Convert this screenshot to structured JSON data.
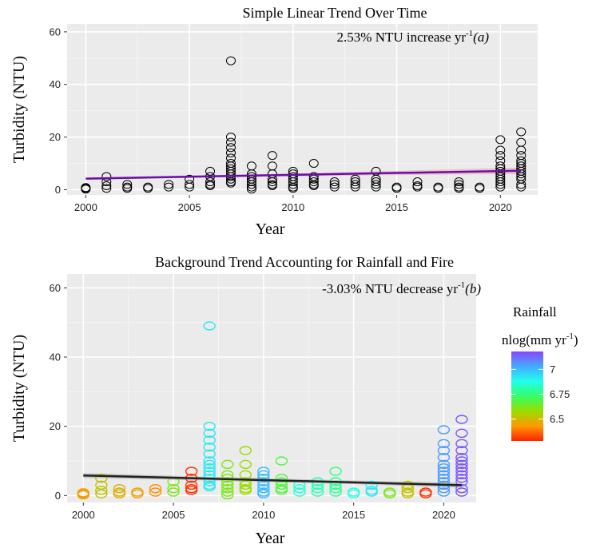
{
  "chart_data": [
    {
      "type": "scatter",
      "title": "Simple Linear Trend Over Time",
      "xlabel": "Year",
      "ylabel": "Turbidity (NTU)",
      "annotation": {
        "text": "2.53% NTU increase yr",
        "sup": "-1",
        "label": "(a)"
      },
      "xlim": [
        1999.1,
        2021.8
      ],
      "ylim": [
        -2,
        63
      ],
      "xticks": [
        2000,
        2005,
        2010,
        2015,
        2020
      ],
      "yticks": [
        0,
        20,
        40,
        60
      ],
      "grid": true,
      "point_color": "#000000",
      "trend": {
        "x": [
          2000,
          2021
        ],
        "y": [
          4.2,
          7.2
        ],
        "color": "#6a0dad",
        "band_color": "#e8a0a0"
      },
      "points": [
        [
          2000,
          0.5
        ],
        [
          2000,
          0.2
        ],
        [
          2000,
          0.8
        ],
        [
          2001,
          5
        ],
        [
          2001,
          3
        ],
        [
          2001,
          1.5
        ],
        [
          2001,
          0.5
        ],
        [
          2002,
          2
        ],
        [
          2002,
          1
        ],
        [
          2002,
          0.5
        ],
        [
          2003,
          1
        ],
        [
          2003,
          0.5
        ],
        [
          2004,
          2
        ],
        [
          2004,
          1
        ],
        [
          2005,
          4
        ],
        [
          2005,
          2
        ],
        [
          2005,
          1
        ],
        [
          2006,
          7
        ],
        [
          2006,
          5
        ],
        [
          2006,
          3
        ],
        [
          2006,
          2
        ],
        [
          2006,
          1.5
        ],
        [
          2007,
          49
        ],
        [
          2007,
          20
        ],
        [
          2007,
          18
        ],
        [
          2007,
          16
        ],
        [
          2007,
          14
        ],
        [
          2007,
          12
        ],
        [
          2007,
          10
        ],
        [
          2007,
          9
        ],
        [
          2007,
          8
        ],
        [
          2007,
          7
        ],
        [
          2007,
          6
        ],
        [
          2007,
          5
        ],
        [
          2007,
          4
        ],
        [
          2007,
          3
        ],
        [
          2007,
          2.5
        ],
        [
          2008,
          9
        ],
        [
          2008,
          6
        ],
        [
          2008,
          5
        ],
        [
          2008,
          4
        ],
        [
          2008,
          3
        ],
        [
          2008,
          2
        ],
        [
          2008,
          1
        ],
        [
          2008,
          0.2
        ],
        [
          2009,
          13
        ],
        [
          2009,
          9
        ],
        [
          2009,
          6
        ],
        [
          2009,
          4
        ],
        [
          2009,
          3
        ],
        [
          2009,
          2
        ],
        [
          2009,
          1.5
        ],
        [
          2010,
          7
        ],
        [
          2010,
          6
        ],
        [
          2010,
          5
        ],
        [
          2010,
          4
        ],
        [
          2010,
          3
        ],
        [
          2010,
          2
        ],
        [
          2010,
          1
        ],
        [
          2010,
          0.5
        ],
        [
          2011,
          10
        ],
        [
          2011,
          5
        ],
        [
          2011,
          4
        ],
        [
          2011,
          3
        ],
        [
          2011,
          2
        ],
        [
          2011,
          1.5
        ],
        [
          2012,
          3
        ],
        [
          2012,
          2
        ],
        [
          2012,
          1
        ],
        [
          2013,
          4
        ],
        [
          2013,
          3
        ],
        [
          2013,
          2
        ],
        [
          2013,
          1
        ],
        [
          2014,
          7
        ],
        [
          2014,
          4
        ],
        [
          2014,
          3
        ],
        [
          2014,
          2
        ],
        [
          2014,
          1
        ],
        [
          2015,
          1
        ],
        [
          2015,
          0.5
        ],
        [
          2016,
          3
        ],
        [
          2016,
          1.5
        ],
        [
          2016,
          1
        ],
        [
          2017,
          1
        ],
        [
          2017,
          0.5
        ],
        [
          2018,
          3
        ],
        [
          2018,
          2
        ],
        [
          2018,
          1
        ],
        [
          2018,
          0.5
        ],
        [
          2019,
          1
        ],
        [
          2019,
          0.5
        ],
        [
          2020,
          19
        ],
        [
          2020,
          15
        ],
        [
          2020,
          13
        ],
        [
          2020,
          11
        ],
        [
          2020,
          9
        ],
        [
          2020,
          8
        ],
        [
          2020,
          7
        ],
        [
          2020,
          6
        ],
        [
          2020,
          5
        ],
        [
          2020,
          4
        ],
        [
          2020,
          3
        ],
        [
          2020,
          2
        ],
        [
          2020,
          1
        ],
        [
          2021,
          22
        ],
        [
          2021,
          18
        ],
        [
          2021,
          15
        ],
        [
          2021,
          13
        ],
        [
          2021,
          11
        ],
        [
          2021,
          10
        ],
        [
          2021,
          9
        ],
        [
          2021,
          8
        ],
        [
          2021,
          7
        ],
        [
          2021,
          6
        ],
        [
          2021,
          5
        ],
        [
          2021,
          4
        ],
        [
          2021,
          2
        ],
        [
          2021,
          1
        ]
      ]
    },
    {
      "type": "scatter",
      "title": "Background Trend Accounting for Rainfall and Fire",
      "xlabel": "Year",
      "ylabel": "Turbidity (NTU)",
      "annotation": {
        "text": "-3.03% NTU decrease yr",
        "sup": "-1",
        "label": "(b)"
      },
      "xlim": [
        1999.1,
        2021.8
      ],
      "ylim": [
        -2,
        64
      ],
      "xticks": [
        2000,
        2005,
        2010,
        2015,
        2020
      ],
      "yticks": [
        0,
        20,
        40,
        60
      ],
      "grid": true,
      "trend": {
        "x": [
          2000,
          2021
        ],
        "y": [
          5.8,
          3.0
        ],
        "color": "#222222",
        "band_color": "#a8a8a8"
      },
      "legend": {
        "title_line1": "Rainfall",
        "title_line2": "nlog(mm yr",
        "title_sup": "-1",
        "title_end": ")",
        "placement": "right",
        "range": [
          6.28,
          7.18
        ],
        "ticks": [
          6.5,
          6.75,
          7
        ],
        "tick_labels": [
          "6.5",
          "6.75",
          "7"
        ],
        "color_stops": [
          "#ff2200",
          "#ff9900",
          "#99dd00",
          "#33ff66",
          "#22ffee",
          "#44aaff",
          "#8844ff"
        ]
      },
      "year_rainfall": {
        "2000": 6.45,
        "2001": 6.52,
        "2002": 6.48,
        "2003": 6.45,
        "2004": 6.42,
        "2005": 6.62,
        "2006": 6.3,
        "2007": 6.92,
        "2008": 6.62,
        "2009": 6.58,
        "2010": 7.0,
        "2011": 6.68,
        "2012": 6.85,
        "2013": 6.82,
        "2014": 6.78,
        "2015": 6.88,
        "2016": 6.92,
        "2017": 6.62,
        "2018": 6.52,
        "2019": 6.3,
        "2020": 7.05,
        "2021": 7.15
      },
      "points": [
        [
          2000,
          0.5
        ],
        [
          2000,
          0.2
        ],
        [
          2000,
          0.8
        ],
        [
          2001,
          5
        ],
        [
          2001,
          3
        ],
        [
          2001,
          1.5
        ],
        [
          2001,
          0.5
        ],
        [
          2002,
          2
        ],
        [
          2002,
          1
        ],
        [
          2002,
          0.5
        ],
        [
          2003,
          1
        ],
        [
          2003,
          0.5
        ],
        [
          2004,
          2
        ],
        [
          2004,
          1
        ],
        [
          2005,
          4
        ],
        [
          2005,
          2
        ],
        [
          2005,
          1
        ],
        [
          2006,
          7
        ],
        [
          2006,
          5
        ],
        [
          2006,
          3
        ],
        [
          2006,
          2
        ],
        [
          2006,
          1.5
        ],
        [
          2007,
          49
        ],
        [
          2007,
          20
        ],
        [
          2007,
          18
        ],
        [
          2007,
          16
        ],
        [
          2007,
          14
        ],
        [
          2007,
          12
        ],
        [
          2007,
          10
        ],
        [
          2007,
          9
        ],
        [
          2007,
          8
        ],
        [
          2007,
          7
        ],
        [
          2007,
          6
        ],
        [
          2007,
          5
        ],
        [
          2007,
          4
        ],
        [
          2007,
          3
        ],
        [
          2007,
          2.5
        ],
        [
          2008,
          9
        ],
        [
          2008,
          6
        ],
        [
          2008,
          5
        ],
        [
          2008,
          4
        ],
        [
          2008,
          3
        ],
        [
          2008,
          2
        ],
        [
          2008,
          1
        ],
        [
          2008,
          0.2
        ],
        [
          2009,
          13
        ],
        [
          2009,
          9
        ],
        [
          2009,
          6
        ],
        [
          2009,
          4
        ],
        [
          2009,
          3
        ],
        [
          2009,
          2
        ],
        [
          2009,
          1.5
        ],
        [
          2010,
          7
        ],
        [
          2010,
          6
        ],
        [
          2010,
          5
        ],
        [
          2010,
          4
        ],
        [
          2010,
          3
        ],
        [
          2010,
          2
        ],
        [
          2010,
          1
        ],
        [
          2010,
          0.5
        ],
        [
          2011,
          10
        ],
        [
          2011,
          5
        ],
        [
          2011,
          4
        ],
        [
          2011,
          3
        ],
        [
          2011,
          2
        ],
        [
          2011,
          1.5
        ],
        [
          2012,
          3
        ],
        [
          2012,
          2
        ],
        [
          2012,
          1
        ],
        [
          2013,
          4
        ],
        [
          2013,
          3
        ],
        [
          2013,
          2
        ],
        [
          2013,
          1
        ],
        [
          2014,
          7
        ],
        [
          2014,
          4
        ],
        [
          2014,
          3
        ],
        [
          2014,
          2
        ],
        [
          2014,
          1
        ],
        [
          2015,
          1
        ],
        [
          2015,
          0.5
        ],
        [
          2016,
          3
        ],
        [
          2016,
          1.5
        ],
        [
          2016,
          1
        ],
        [
          2017,
          1
        ],
        [
          2017,
          0.5
        ],
        [
          2018,
          3
        ],
        [
          2018,
          2
        ],
        [
          2018,
          1
        ],
        [
          2018,
          0.5
        ],
        [
          2019,
          1
        ],
        [
          2019,
          0.5
        ],
        [
          2020,
          19
        ],
        [
          2020,
          15
        ],
        [
          2020,
          13
        ],
        [
          2020,
          11
        ],
        [
          2020,
          9
        ],
        [
          2020,
          8
        ],
        [
          2020,
          7
        ],
        [
          2020,
          6
        ],
        [
          2020,
          5
        ],
        [
          2020,
          4
        ],
        [
          2020,
          3
        ],
        [
          2020,
          2
        ],
        [
          2020,
          1
        ],
        [
          2021,
          22
        ],
        [
          2021,
          18
        ],
        [
          2021,
          15
        ],
        [
          2021,
          13
        ],
        [
          2021,
          11
        ],
        [
          2021,
          10
        ],
        [
          2021,
          9
        ],
        [
          2021,
          8
        ],
        [
          2021,
          7
        ],
        [
          2021,
          6
        ],
        [
          2021,
          5
        ],
        [
          2021,
          4
        ],
        [
          2021,
          2
        ],
        [
          2021,
          1
        ]
      ]
    }
  ]
}
